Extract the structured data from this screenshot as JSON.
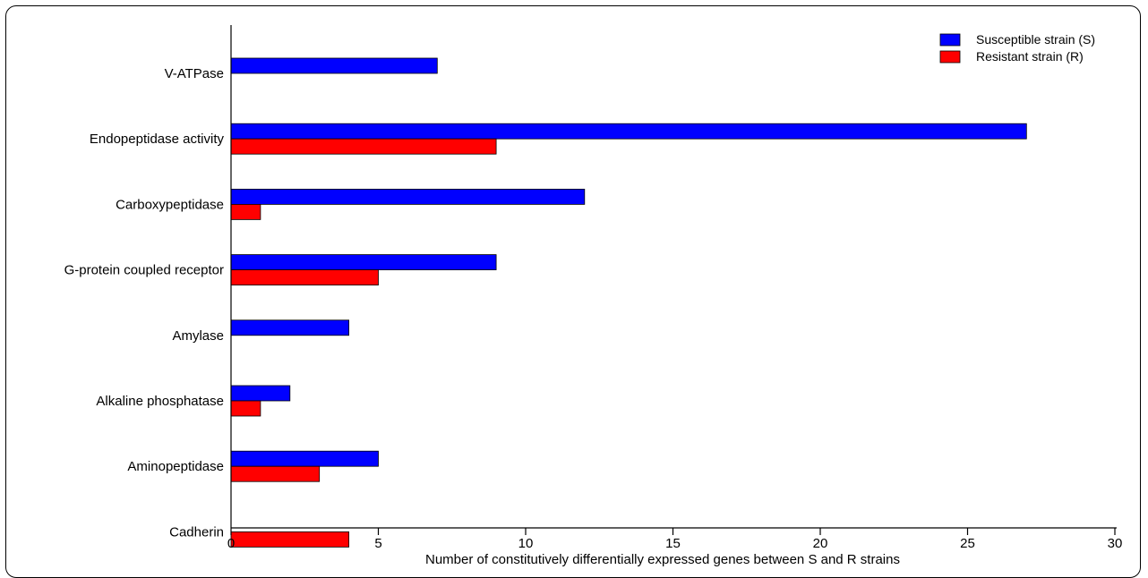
{
  "chart_data": {
    "type": "bar",
    "orientation": "horizontal",
    "categories": [
      "V-ATPase",
      "Endopeptidase activity",
      "Carboxypeptidase",
      "G-protein coupled receptor",
      "Amylase",
      "Alkaline phosphatase",
      "Aminopeptidase",
      "Cadherin"
    ],
    "series": [
      {
        "name": "Susceptible strain (S)",
        "color": "#0000ff",
        "values": [
          7,
          27,
          12,
          9,
          4,
          2,
          5,
          0
        ]
      },
      {
        "name": "Resistant strain (R)",
        "color": "#ff0000",
        "values": [
          0,
          9,
          1,
          5,
          0,
          1,
          3,
          4
        ]
      }
    ],
    "x_ticks": [
      "0",
      "5",
      "10",
      "15",
      "20",
      "25",
      "30"
    ],
    "xlabel": "Number of constitutively differentially expressed genes  between S and R strains",
    "ylabel": "",
    "xlim": [
      0,
      30
    ],
    "grid": false,
    "legend_position": "top-right"
  }
}
